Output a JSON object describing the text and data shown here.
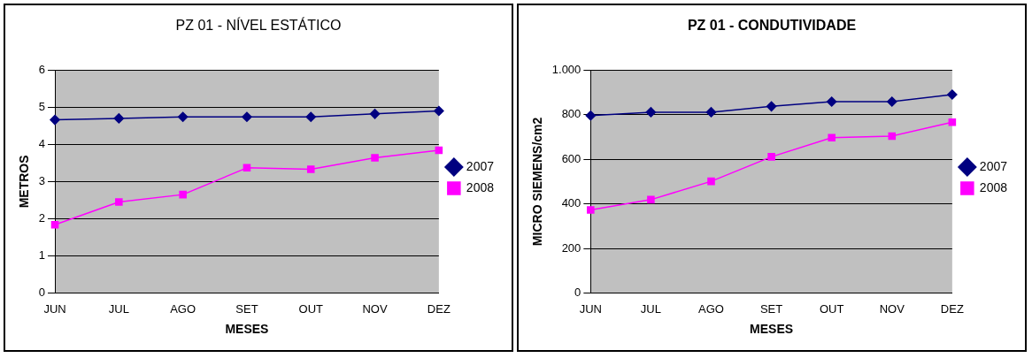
{
  "chart_data": [
    {
      "type": "line",
      "title": "PZ 01 - NÍVEL ESTÁTICO",
      "xlabel": "MESES",
      "ylabel": "METROS",
      "categories": [
        "JUN",
        "JUL",
        "AGO",
        "SET",
        "OUT",
        "NOV",
        "DEZ"
      ],
      "series": [
        {
          "name": "2007",
          "color": "#000080",
          "marker": "diamond",
          "values": [
            4.66,
            4.7,
            4.74,
            4.74,
            4.74,
            4.82,
            4.9
          ]
        },
        {
          "name": "2008",
          "color": "#ff00ff",
          "marker": "square",
          "values": [
            1.84,
            2.45,
            2.65,
            3.37,
            3.33,
            3.64,
            3.84
          ]
        }
      ],
      "ylim": [
        0,
        6
      ],
      "yticks": [
        0,
        1,
        2,
        3,
        4,
        5,
        6
      ],
      "grid": "y",
      "legend": "right",
      "line_style": "solid"
    },
    {
      "type": "line",
      "title": "PZ 01 - CONDUTIVIDADE",
      "xlabel": "MESES",
      "ylabel": "MICRO SIEMENS/cm2",
      "categories": [
        "JUN",
        "JUL",
        "AGO",
        "SET",
        "OUT",
        "NOV",
        "DEZ"
      ],
      "series": [
        {
          "name": "2007",
          "color": "#000080",
          "marker": "diamond",
          "values": [
            796,
            811,
            811,
            837,
            858,
            858,
            890
          ]
        },
        {
          "name": "2008",
          "color": "#ff00ff",
          "marker": "square",
          "values": [
            373,
            419,
            501,
            611,
            697,
            704,
            766
          ]
        }
      ],
      "ylim": [
        0,
        1000
      ],
      "yticks": [
        0,
        200,
        400,
        600,
        800,
        {
          "value": 1000,
          "label": "1.000"
        }
      ],
      "grid": "y",
      "legend": "right",
      "line_style": "solid"
    }
  ]
}
